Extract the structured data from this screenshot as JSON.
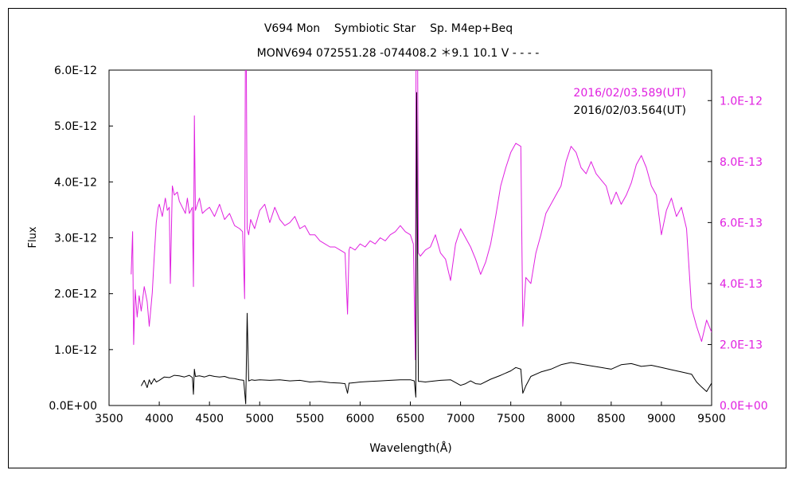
{
  "chart_data": {
    "type": "line",
    "title": "V694 Mon    Symbiotic Star    Sp. M4ep+Beq",
    "subtitle": "MONV694 072551.28 -074408.2 ＊9.1 10.1 V - - - -",
    "xlabel": "Wavelength(Å)",
    "ylabel": "Flux",
    "xlim": [
      3500,
      9500
    ],
    "ylim_left": [
      0,
      6e-12
    ],
    "ylim_right": [
      0,
      1.1e-12
    ],
    "grid": false,
    "legend_position": "top-right",
    "x_ticks": [
      "3500",
      "4000",
      "4500",
      "5000",
      "5500",
      "6000",
      "6500",
      "7000",
      "7500",
      "8000",
      "8500",
      "9000",
      "9500"
    ],
    "y_left_ticks": [
      "0.0E+00",
      "1.0E-12",
      "2.0E-12",
      "3.0E-12",
      "4.0E-12",
      "5.0E-12",
      "6.0E-12"
    ],
    "y_right_ticks": [
      "0.0E+00",
      "2.0E-13",
      "4.0E-13",
      "6.0E-13",
      "8.0E-13",
      "1.0E-12"
    ],
    "colors": {
      "series_magenta": "#e020e0",
      "series_black": "#000000"
    },
    "series": [
      {
        "name": "2016/02/03.589(UT)",
        "axis": "right",
        "color": "#e020e0",
        "x": [
          3720,
          3735,
          3745,
          3760,
          3780,
          3800,
          3820,
          3850,
          3880,
          3900,
          3930,
          3950,
          3970,
          3990,
          4000,
          4030,
          4060,
          4080,
          4100,
          4110,
          4130,
          4150,
          4180,
          4200,
          4230,
          4260,
          4280,
          4300,
          4330,
          4340,
          4350,
          4360,
          4380,
          4400,
          4430,
          4460,
          4500,
          4550,
          4600,
          4650,
          4700,
          4750,
          4800,
          4830,
          4850,
          4861,
          4875,
          4890,
          4910,
          4950,
          5000,
          5050,
          5100,
          5150,
          5200,
          5250,
          5300,
          5350,
          5400,
          5450,
          5500,
          5550,
          5600,
          5650,
          5700,
          5750,
          5800,
          5850,
          5875,
          5890,
          5900,
          5950,
          6000,
          6050,
          6100,
          6150,
          6200,
          6250,
          6300,
          6350,
          6400,
          6450,
          6500,
          6530,
          6550,
          6563,
          6580,
          6600,
          6650,
          6700,
          6750,
          6800,
          6850,
          6900,
          6950,
          7000,
          7050,
          7100,
          7150,
          7200,
          7250,
          7300,
          7350,
          7400,
          7450,
          7500,
          7550,
          7600,
          7620,
          7650,
          7700,
          7750,
          7800,
          7850,
          7900,
          7950,
          8000,
          8050,
          8100,
          8150,
          8200,
          8250,
          8300,
          8350,
          8400,
          8450,
          8500,
          8550,
          8600,
          8650,
          8700,
          8750,
          8800,
          8850,
          8900,
          8950,
          9000,
          9050,
          9100,
          9150,
          9200,
          9250,
          9300,
          9350,
          9400,
          9450,
          9500
        ],
        "y": [
          4.3e-13,
          5.7e-13,
          2e-13,
          3.8e-13,
          2.9e-13,
          3.6e-13,
          3.1e-13,
          3.9e-13,
          3.4e-13,
          2.6e-13,
          3.7e-13,
          4.9e-13,
          6e-13,
          6.5e-13,
          6.6e-13,
          6.2e-13,
          6.8e-13,
          6.4e-13,
          6.5e-13,
          4e-13,
          7.2e-13,
          6.9e-13,
          7e-13,
          6.7e-13,
          6.5e-13,
          6.3e-13,
          6.8e-13,
          6.3e-13,
          6.5e-13,
          3.9e-13,
          9.5e-13,
          6.4e-13,
          6.6e-13,
          6.8e-13,
          6.3e-13,
          6.4e-13,
          6.5e-13,
          6.2e-13,
          6.6e-13,
          6.1e-13,
          6.3e-13,
          5.9e-13,
          5.8e-13,
          5.7e-13,
          3.5e-13,
          1.5e-12,
          5.8e-13,
          5.6e-13,
          6.1e-13,
          5.8e-13,
          6.4e-13,
          6.6e-13,
          6e-13,
          6.5e-13,
          6.1e-13,
          5.9e-13,
          6e-13,
          6.2e-13,
          5.8e-13,
          5.9e-13,
          5.6e-13,
          5.6e-13,
          5.4e-13,
          5.3e-13,
          5.2e-13,
          5.2e-13,
          5.1e-13,
          5e-13,
          3e-13,
          5.1e-13,
          5.2e-13,
          5.1e-13,
          5.3e-13,
          5.2e-13,
          5.4e-13,
          5.3e-13,
          5.5e-13,
          5.4e-13,
          5.6e-13,
          5.7e-13,
          5.9e-13,
          5.7e-13,
          5.6e-13,
          5.3e-13,
          1.5e-13,
          2e-12,
          5e-13,
          4.9e-13,
          5.1e-13,
          5.2e-13,
          5.6e-13,
          5e-13,
          4.8e-13,
          4.1e-13,
          5.3e-13,
          5.8e-13,
          5.5e-13,
          5.2e-13,
          4.8e-13,
          4.3e-13,
          4.7e-13,
          5.3e-13,
          6.2e-13,
          7.2e-13,
          7.8e-13,
          8.3e-13,
          8.6e-13,
          8.5e-13,
          2.6e-13,
          4.2e-13,
          4e-13,
          5e-13,
          5.6e-13,
          6.3e-13,
          6.6e-13,
          6.9e-13,
          7.2e-13,
          8e-13,
          8.5e-13,
          8.3e-13,
          7.8e-13,
          7.6e-13,
          8e-13,
          7.6e-13,
          7.4e-13,
          7.2e-13,
          6.6e-13,
          7e-13,
          6.6e-13,
          6.9e-13,
          7.3e-13,
          7.9e-13,
          8.2e-13,
          7.8e-13,
          7.2e-13,
          6.9e-13,
          5.6e-13,
          6.4e-13,
          6.8e-13,
          6.2e-13,
          6.5e-13,
          5.8e-13,
          3.2e-13,
          2.6e-13,
          2.1e-13,
          2.8e-13,
          2.4e-13
        ]
      },
      {
        "name": "2016/02/03.564(UT)",
        "axis": "left",
        "color": "#000000",
        "x": [
          3820,
          3850,
          3880,
          3900,
          3920,
          3950,
          3970,
          4000,
          4050,
          4100,
          4150,
          4200,
          4250,
          4300,
          4330,
          4340,
          4350,
          4360,
          4400,
          4450,
          4500,
          4550,
          4600,
          4650,
          4700,
          4750,
          4800,
          4840,
          4861,
          4875,
          4890,
          4920,
          4950,
          5000,
          5100,
          5200,
          5300,
          5400,
          5500,
          5600,
          5700,
          5800,
          5850,
          5875,
          5890,
          5900,
          5950,
          6000,
          6100,
          6200,
          6300,
          6400,
          6500,
          6540,
          6555,
          6563,
          6580,
          6600,
          6650,
          6700,
          6800,
          6900,
          6950,
          7000,
          7050,
          7100,
          7150,
          7200,
          7300,
          7400,
          7500,
          7550,
          7600,
          7620,
          7650,
          7700,
          7800,
          7900,
          8000,
          8100,
          8200,
          8300,
          8400,
          8500,
          8600,
          8700,
          8800,
          8900,
          9000,
          9100,
          9200,
          9300,
          9350,
          9400,
          9450,
          9500
        ],
        "y": [
          3.5e-13,
          4.5e-13,
          3.2e-13,
          4.6e-13,
          3.8e-13,
          4.8e-13,
          4.2e-13,
          4.5e-13,
          5.1e-13,
          5e-13,
          5.4e-13,
          5.3e-13,
          5.1e-13,
          5.4e-13,
          5e-13,
          2e-13,
          6.5e-13,
          5.2e-13,
          5.3e-13,
          5.1e-13,
          5.4e-13,
          5.2e-13,
          5.1e-13,
          5.2e-13,
          4.9e-13,
          4.8e-13,
          4.6e-13,
          4.5e-13,
          3e-14,
          1.65e-12,
          4.4e-13,
          4.6e-13,
          4.5e-13,
          4.6e-13,
          4.5e-13,
          4.6e-13,
          4.4e-13,
          4.5e-13,
          4.2e-13,
          4.3e-13,
          4.1e-13,
          4e-13,
          3.9e-13,
          2.2e-13,
          4e-13,
          4e-13,
          4.1e-13,
          4.2e-13,
          4.3e-13,
          4.4e-13,
          4.5e-13,
          4.6e-13,
          4.6e-13,
          4.4e-13,
          1.5e-13,
          5.6e-12,
          4.3e-13,
          4.3e-13,
          4.2e-13,
          4.3e-13,
          4.5e-13,
          4.6e-13,
          4.1e-13,
          3.6e-13,
          3.9e-13,
          4.4e-13,
          3.9e-13,
          3.8e-13,
          4.7e-13,
          5.4e-13,
          6.2e-13,
          6.8e-13,
          6.5e-13,
          2.2e-13,
          3.5e-13,
          5.2e-13,
          6e-13,
          6.5e-13,
          7.3e-13,
          7.7e-13,
          7.4e-13,
          7.1e-13,
          6.8e-13,
          6.5e-13,
          7.3e-13,
          7.5e-13,
          7e-13,
          7.2e-13,
          6.8e-13,
          6.4e-13,
          6e-13,
          5.6e-13,
          4.2e-13,
          3.3e-13,
          2.5e-13,
          4e-13
        ]
      }
    ]
  }
}
